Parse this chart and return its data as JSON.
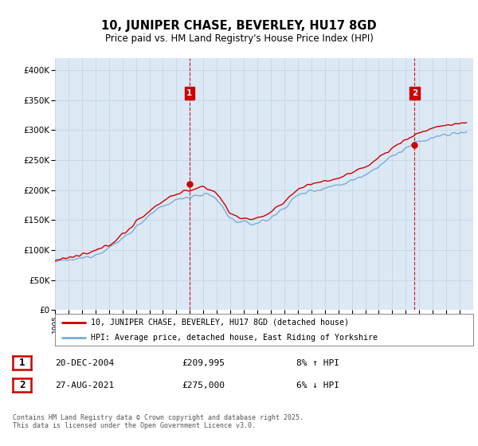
{
  "title": "10, JUNIPER CHASE, BEVERLEY, HU17 8GD",
  "subtitle": "Price paid vs. HM Land Registry's House Price Index (HPI)",
  "legend_line1": "10, JUNIPER CHASE, BEVERLEY, HU17 8GD (detached house)",
  "legend_line2": "HPI: Average price, detached house, East Riding of Yorkshire",
  "footnote": "Contains HM Land Registry data © Crown copyright and database right 2025.\nThis data is licensed under the Open Government Licence v3.0.",
  "marker1_date": "20-DEC-2004",
  "marker1_price": "£209,995",
  "marker1_pct": "8% ↑ HPI",
  "marker2_date": "27-AUG-2021",
  "marker2_price": "£275,000",
  "marker2_pct": "6% ↓ HPI",
  "sale1_year": 2004.97,
  "sale1_value": 209995,
  "sale2_year": 2021.65,
  "sale2_value": 275000,
  "hpi_line_color": "#7aadd4",
  "price_line_color": "#cc0000",
  "vline_color": "#cc0000",
  "marker_box_color": "#cc0000",
  "grid_color": "#c8d8e8",
  "bg_color": "#dce8f4",
  "ylim_min": 0,
  "ylim_max": 420000,
  "ytick_step": 50000,
  "xmin": 1995,
  "xmax": 2026
}
